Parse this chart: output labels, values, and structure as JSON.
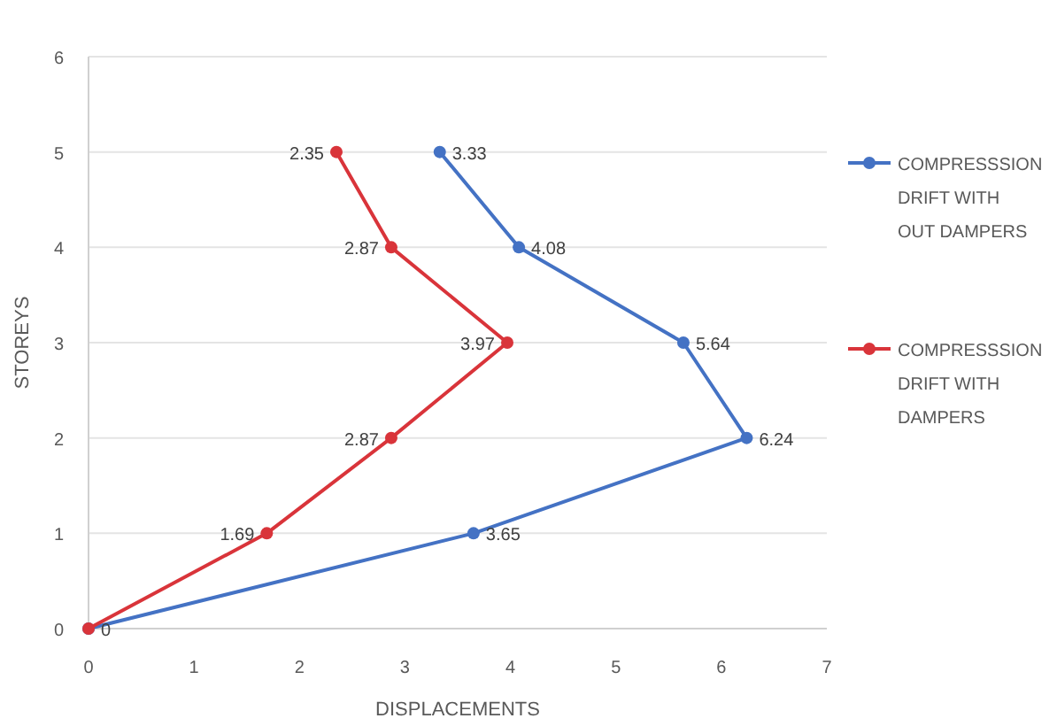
{
  "chart_data": {
    "type": "line",
    "orientation": "horizontal",
    "xlabel": "DISPLACEMENTS",
    "ylabel": "STOREYS",
    "xlim": [
      0,
      7
    ],
    "xticks": [
      0,
      1,
      2,
      3,
      4,
      5,
      6,
      7
    ],
    "ylim": [
      0,
      6
    ],
    "yticks": [
      0,
      1,
      2,
      3,
      4,
      5,
      6
    ],
    "grid": "y",
    "legend": "right",
    "marker": "circle",
    "line_style": "solid",
    "series": [
      {
        "name": "COMPRESSSION DRIFT WITH OUT DAMPERS",
        "color": "#4472c4",
        "x": [
          0,
          1,
          2,
          3,
          4,
          5
        ],
        "values": [
          0,
          3.65,
          6.24,
          5.64,
          4.08,
          3.33
        ],
        "value_labels": [
          "0",
          "3.65",
          "6.24",
          "5.64",
          "4.08",
          "3.33"
        ]
      },
      {
        "name": "COMPRESSSION DRIFT WITH DAMPERS",
        "color": "#d9343a",
        "x": [
          0,
          1,
          2,
          3,
          4,
          5
        ],
        "values": [
          0,
          1.69,
          2.87,
          3.97,
          2.87,
          2.35
        ],
        "value_labels": [
          null,
          "1.69",
          "2.87",
          "3.97",
          "2.87",
          "2.35"
        ]
      }
    ]
  }
}
